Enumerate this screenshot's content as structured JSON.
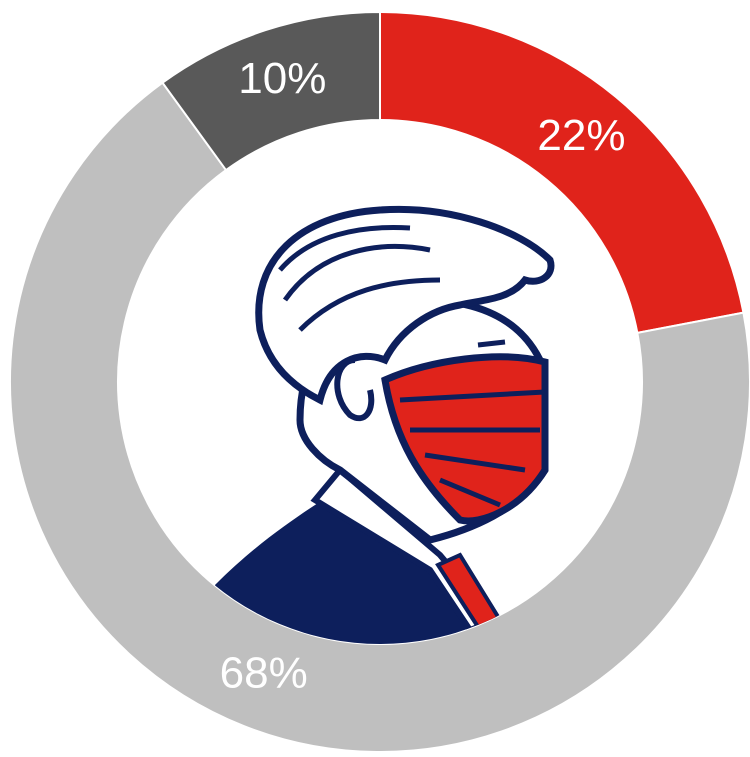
{
  "chart_data": {
    "type": "donut",
    "categories": [
      null,
      null,
      null
    ],
    "values": [
      22,
      68,
      10
    ],
    "value_labels": [
      "22%",
      "68%",
      "10%"
    ],
    "colors": [
      "#e0231b",
      "#bfbfbf",
      "#595959"
    ]
  }
}
